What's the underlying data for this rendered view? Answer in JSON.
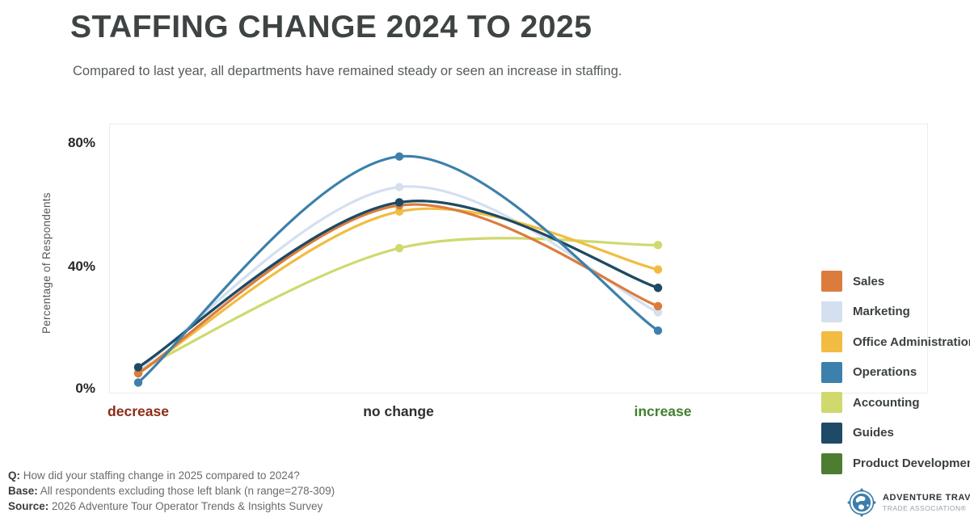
{
  "header": {
    "title": "STAFFING CHANGE 2024 TO 2025",
    "subtitle": "Compared to last year, all departments have remained steady or seen an increase in staffing."
  },
  "chart_data": {
    "type": "line",
    "title": "STAFFING CHANGE 2024 TO 2025",
    "xlabel": "",
    "ylabel": "Percentage of Respondents",
    "categories": [
      "decrease",
      "no change",
      "increase"
    ],
    "category_label_colors": [
      "#8B2B16",
      "#2E2E2E",
      "#41802F"
    ],
    "ytick_labels": [
      "80%",
      "40%",
      "0%"
    ],
    "yticks": [
      80,
      40,
      0
    ],
    "ylim": [
      0,
      86
    ],
    "grid": false,
    "legend_position": "right-inside",
    "series": [
      {
        "name": "Sales",
        "color": "#DB7C3D",
        "values": [
          5,
          60,
          27
        ]
      },
      {
        "name": "Marketing",
        "color": "#D4E0EF",
        "values": [
          6,
          66,
          25
        ]
      },
      {
        "name": "Office Administration",
        "color": "#F1BC41",
        "values": [
          5,
          58,
          39
        ]
      },
      {
        "name": "Operations",
        "color": "#3D80AB",
        "values": [
          2,
          76,
          19
        ]
      },
      {
        "name": "Accounting",
        "color": "#CFD96E",
        "values": [
          6,
          46,
          47
        ]
      },
      {
        "name": "Guides",
        "color": "#1D4A66",
        "values": [
          7,
          61,
          33
        ]
      },
      {
        "name": "Product Development",
        "color": "#4C7D31",
        "values": [
          7,
          61,
          33
        ],
        "hidden": true
      }
    ],
    "draw_order": [
      "Product Development",
      "Accounting",
      "Marketing",
      "Office Administration",
      "Sales",
      "Guides",
      "Operations"
    ]
  },
  "legend": {
    "items": [
      {
        "label": "Sales",
        "color": "#DB7C3D"
      },
      {
        "label": "Marketing",
        "color": "#D4E0EF"
      },
      {
        "label": "Office Administration",
        "color": "#F1BC41"
      },
      {
        "label": "Operations",
        "color": "#3D80AB"
      },
      {
        "label": "Accounting",
        "color": "#CFD96E"
      },
      {
        "label": "Guides",
        "color": "#1D4A66"
      },
      {
        "label": "Product Development",
        "color": "#4C7D31"
      }
    ]
  },
  "footer": {
    "lines": [
      {
        "label": "Q:",
        "text": " How did your staffing change in 2025 compared to 2024?"
      },
      {
        "label": "Base:",
        "text": " All respondents excluding those left blank (n range=278-309)"
      },
      {
        "label": "Source:",
        "text": " 2026 Adventure Tour Operator Trends & Insights Survey"
      }
    ]
  },
  "logo": {
    "line1": "ADVENTURE TRAVEL",
    "line2": "TRADE ASSOCIATION®"
  }
}
